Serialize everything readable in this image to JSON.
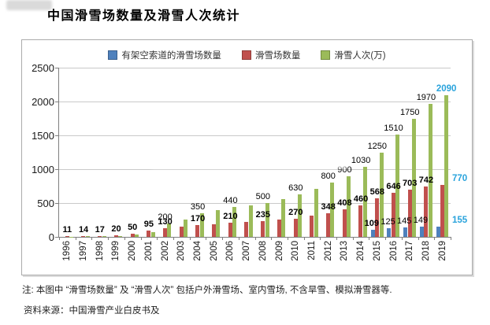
{
  "page": {
    "title": "中国滑雪场数量及滑雪人次统计",
    "note": "注: 本图中 “滑雪场数量” 及 “滑雪人次” 包括户外滑雪场、室内雪场, 不含旱雪、模拟滑雪器等.",
    "source": "资料来源：中国滑雪产业白皮书及"
  },
  "chart_data": {
    "type": "bar",
    "title": "中国滑雪场数量及滑雪人次统计",
    "legend_position": "top",
    "grid": true,
    "ylim": [
      0,
      2500
    ],
    "yticks": [
      0,
      500,
      1000,
      1500,
      2000,
      2500
    ],
    "categories": [
      "1996",
      "1997",
      "1998",
      "1999",
      "2000",
      "2001",
      "2002",
      "2003",
      "2004",
      "2005",
      "2006",
      "2007",
      "2008",
      "2009",
      "2010",
      "2011",
      "2012",
      "2013",
      "2014",
      "2015",
      "2016",
      "2017",
      "2018",
      "2019"
    ],
    "series": [
      {
        "key": "ropeway-resort-count",
        "name": "有架空索道的滑雪场数量",
        "color": "#4F81BD",
        "label_weight": "normal",
        "bold_label_indices": [
          19
        ],
        "values": [
          0,
          0,
          0,
          0,
          0,
          0,
          0,
          0,
          0,
          0,
          0,
          0,
          0,
          0,
          0,
          0,
          0,
          0,
          0,
          109,
          125,
          145,
          149,
          155
        ],
        "labels": [
          null,
          null,
          null,
          null,
          null,
          null,
          null,
          null,
          null,
          null,
          null,
          null,
          null,
          null,
          null,
          null,
          null,
          null,
          null,
          "109",
          "125",
          "145",
          "149",
          "155"
        ]
      },
      {
        "key": "resort-count",
        "name": "滑雪场数量",
        "color": "#C0504D",
        "label_weight": "bold",
        "bold_label_indices": [],
        "values": [
          11,
          14,
          17,
          20,
          50,
          95,
          130,
          150,
          170,
          190,
          210,
          222,
          235,
          252,
          270,
          310,
          348,
          408,
          460,
          568,
          646,
          703,
          742,
          770
        ],
        "labels": [
          "11",
          "14",
          "17",
          "20",
          "50",
          "95",
          "130",
          null,
          "170",
          null,
          "210",
          null,
          "235",
          null,
          "270",
          null,
          "348",
          "408",
          "460",
          "568",
          "646",
          "703",
          "742",
          "770"
        ]
      },
      {
        "key": "ski-visits",
        "name": "滑雪人次(万)",
        "color": "#9BBB59",
        "label_weight": "normal",
        "bold_label_indices": [],
        "values": [
          5,
          8,
          10,
          15,
          30,
          75,
          200,
          260,
          350,
          400,
          440,
          470,
          500,
          560,
          630,
          710,
          800,
          900,
          1030,
          1250,
          1510,
          1750,
          1970,
          2090
        ],
        "labels": [
          null,
          null,
          null,
          null,
          null,
          null,
          "200",
          null,
          "350",
          null,
          "440",
          null,
          "500",
          null,
          "630",
          null,
          "800",
          "900",
          "1030",
          "1250",
          "1510",
          "1750",
          "1970",
          "2090"
        ]
      }
    ],
    "highlight": {
      "year": "2019",
      "label_color": "#29A3DC"
    }
  }
}
